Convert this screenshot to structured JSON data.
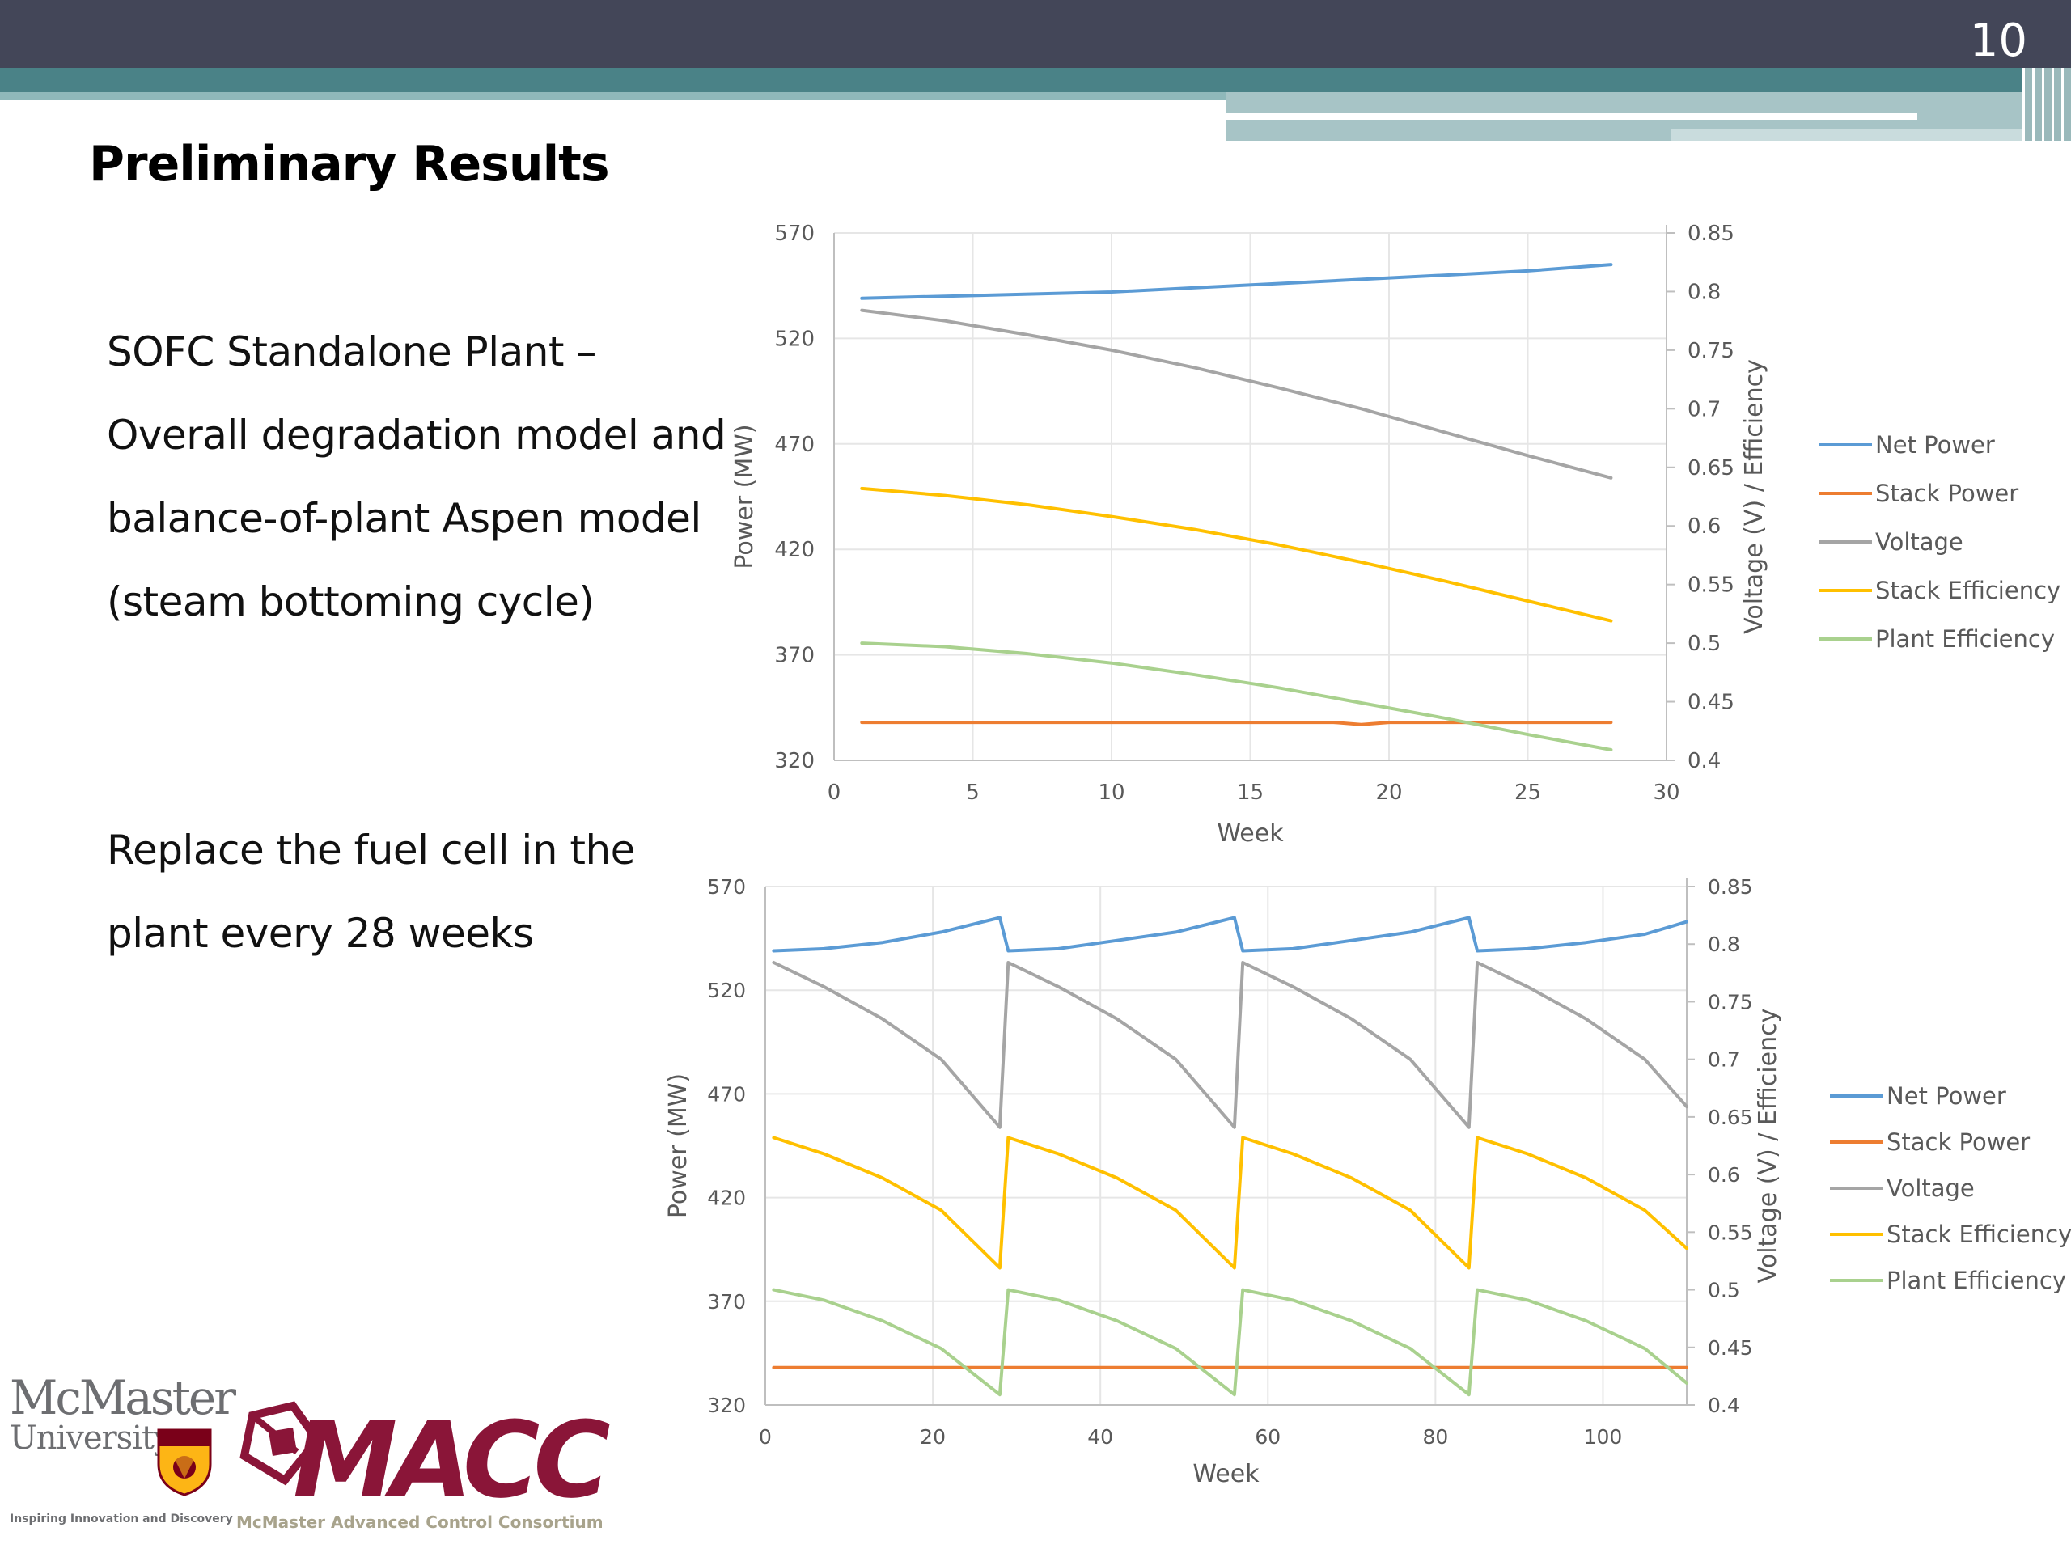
{
  "slide": {
    "number": "10",
    "title": "Preliminary Results",
    "text_block_1": [
      "SOFC Standalone Plant –",
      "Overall degradation model and",
      "balance-of-plant Aspen model",
      "(steam bottoming cycle)"
    ],
    "text_block_2": [
      "Replace the fuel cell in the",
      "plant every 28 weeks"
    ]
  },
  "logos": {
    "mcmaster_name": "McMaster",
    "mcmaster_univ": "University",
    "mcmaster_tagline": "Inspiring Innovation and Discovery",
    "macc_name": "MACC",
    "macc_tagline": "McMaster Advanced Control Consortium"
  },
  "colors": {
    "net_power": "#5b9bd5",
    "stack_power": "#ed7d31",
    "voltage": "#a5a5a5",
    "stack_efficiency": "#ffc000",
    "plant_efficiency": "#a9d18e",
    "header": "#434658",
    "accent": "#4a8287"
  },
  "chart_data": [
    {
      "type": "line",
      "xlabel": "Week",
      "ylabel": "Power (MW)",
      "ylabel_right": "Voltage (V) / Efficiency",
      "xlim": [
        0,
        30
      ],
      "xticks": [
        0,
        5,
        10,
        15,
        20,
        25,
        30
      ],
      "ylim": [
        320,
        570
      ],
      "yticks": [
        320,
        370,
        420,
        470,
        520,
        570
      ],
      "y2lim": [
        0.4,
        0.85
      ],
      "y2ticks": [
        "0.4",
        "0.45",
        "0.5",
        "0.55",
        "0.6",
        "0.65",
        "0.7",
        "0.75",
        "0.8",
        "0.85"
      ],
      "legend_position": "right",
      "series": [
        {
          "name": "Net Power",
          "axis": "left",
          "x": [
            1,
            4,
            7,
            10,
            13,
            16,
            19,
            22,
            25,
            28
          ],
          "values": [
            539,
            540,
            541,
            542,
            544,
            546,
            548,
            550,
            552,
            555
          ]
        },
        {
          "name": "Stack Power",
          "axis": "left",
          "x": [
            1,
            5,
            10,
            15,
            18,
            19,
            20,
            25,
            28
          ],
          "values": [
            338,
            338,
            338,
            338,
            338,
            337,
            338,
            338,
            338
          ]
        },
        {
          "name": "Voltage",
          "axis": "right",
          "x": [
            1,
            4,
            7,
            10,
            13,
            16,
            19,
            22,
            25,
            28
          ],
          "values": [
            0.784,
            0.775,
            0.763,
            0.75,
            0.735,
            0.718,
            0.7,
            0.68,
            0.66,
            0.641
          ]
        },
        {
          "name": "Stack Efficiency",
          "axis": "right",
          "x": [
            1,
            4,
            7,
            10,
            13,
            16,
            19,
            22,
            25,
            28
          ],
          "values": [
            0.632,
            0.626,
            0.618,
            0.608,
            0.597,
            0.584,
            0.569,
            0.553,
            0.536,
            0.519
          ]
        },
        {
          "name": "Plant Efficiency",
          "axis": "right",
          "x": [
            1,
            4,
            7,
            10,
            13,
            16,
            19,
            22,
            25,
            28
          ],
          "values": [
            0.5,
            0.497,
            0.491,
            0.483,
            0.473,
            0.462,
            0.449,
            0.436,
            0.422,
            0.409
          ]
        }
      ]
    },
    {
      "type": "line",
      "xlabel": "Week",
      "ylabel": "Power (MW)",
      "ylabel_right": "Voltage (V) / Efficiency",
      "xlim": [
        0,
        110
      ],
      "xticks": [
        0,
        20,
        40,
        60,
        80,
        100
      ],
      "ylim": [
        320,
        570
      ],
      "yticks": [
        320,
        370,
        420,
        470,
        520,
        570
      ],
      "y2lim": [
        0.4,
        0.85
      ],
      "y2ticks": [
        "0.4",
        "0.45",
        "0.5",
        "0.55",
        "0.6",
        "0.65",
        "0.7",
        "0.75",
        "0.8",
        "0.85"
      ],
      "legend_position": "right",
      "series": [
        {
          "name": "Net Power",
          "axis": "left",
          "x": [
            1,
            7,
            14,
            21,
            28,
            29,
            35,
            42,
            49,
            56,
            57,
            63,
            70,
            77,
            84,
            85,
            91,
            98,
            105,
            110
          ],
          "values": [
            539,
            540,
            543,
            548,
            555,
            539,
            540,
            544,
            548,
            555,
            539,
            540,
            544,
            548,
            555,
            539,
            540,
            543,
            547,
            553
          ]
        },
        {
          "name": "Stack Power",
          "axis": "left",
          "x": [
            1,
            20,
            40,
            60,
            80,
            100,
            110
          ],
          "values": [
            338,
            338,
            338,
            338,
            338,
            338,
            338
          ]
        },
        {
          "name": "Voltage",
          "axis": "right",
          "x": [
            1,
            7,
            14,
            21,
            28,
            29,
            35,
            42,
            49,
            56,
            57,
            63,
            70,
            77,
            84,
            85,
            91,
            98,
            105,
            110
          ],
          "values": [
            0.784,
            0.763,
            0.735,
            0.7,
            0.641,
            0.784,
            0.763,
            0.735,
            0.7,
            0.641,
            0.784,
            0.763,
            0.735,
            0.7,
            0.641,
            0.784,
            0.763,
            0.735,
            0.7,
            0.659
          ]
        },
        {
          "name": "Stack Efficiency",
          "axis": "right",
          "x": [
            1,
            7,
            14,
            21,
            28,
            29,
            35,
            42,
            49,
            56,
            57,
            63,
            70,
            77,
            84,
            85,
            91,
            98,
            105,
            110
          ],
          "values": [
            0.632,
            0.618,
            0.597,
            0.569,
            0.519,
            0.632,
            0.618,
            0.597,
            0.569,
            0.519,
            0.632,
            0.618,
            0.597,
            0.569,
            0.519,
            0.632,
            0.618,
            0.597,
            0.569,
            0.536
          ]
        },
        {
          "name": "Plant Efficiency",
          "axis": "right",
          "x": [
            1,
            7,
            14,
            21,
            28,
            29,
            35,
            42,
            49,
            56,
            57,
            63,
            70,
            77,
            84,
            85,
            91,
            98,
            105,
            110
          ],
          "values": [
            0.5,
            0.491,
            0.473,
            0.449,
            0.409,
            0.5,
            0.491,
            0.473,
            0.449,
            0.409,
            0.5,
            0.491,
            0.473,
            0.449,
            0.409,
            0.5,
            0.491,
            0.473,
            0.449,
            0.419
          ]
        }
      ]
    }
  ]
}
